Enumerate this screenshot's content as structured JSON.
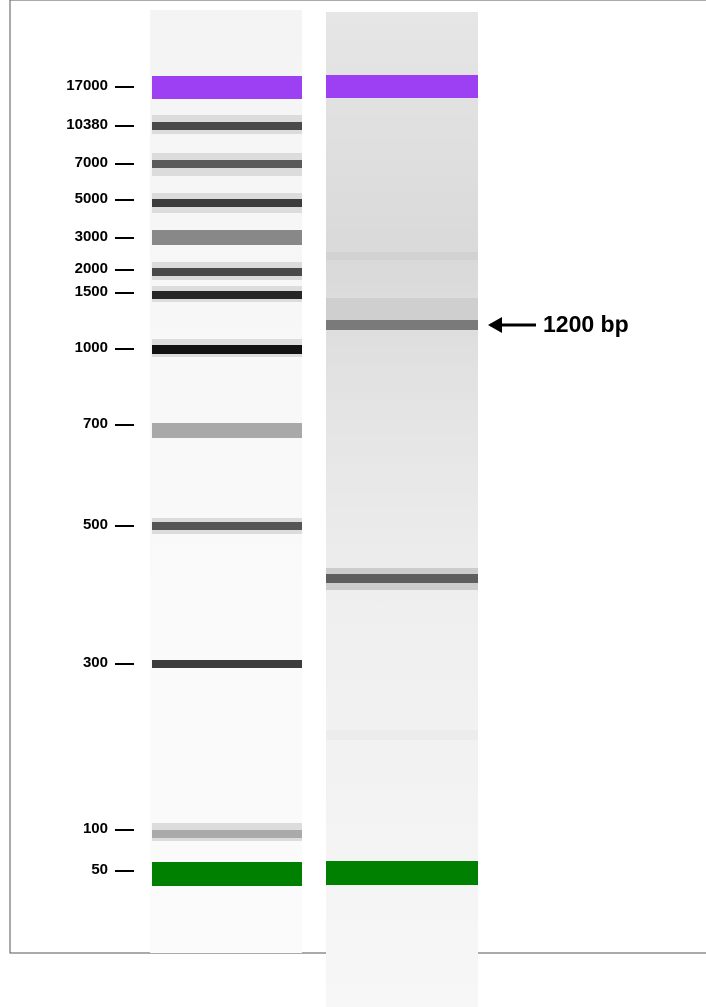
{
  "ladder": {
    "labels": [
      "17000",
      "10380",
      "7000",
      "5000",
      "3000",
      "2000",
      "1500",
      "1000",
      "700",
      "500",
      "300",
      "100",
      "50"
    ]
  },
  "annotation": {
    "label": "1200 bp"
  }
}
